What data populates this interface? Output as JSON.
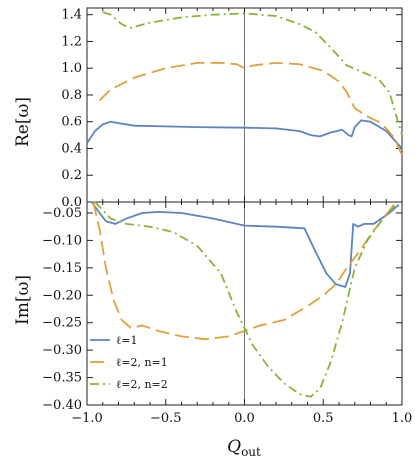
{
  "chart_data": [
    {
      "type": "line",
      "panel": "top",
      "ylabel": "Re[ω]",
      "xlabel": "",
      "xlim": [
        -1.0,
        1.0
      ],
      "ylim": [
        0.0,
        1.45
      ],
      "yticks": [
        "0.0",
        "0.2",
        "0.4",
        "0.6",
        "0.8",
        "1.0",
        "1.2",
        "1.4"
      ],
      "xticks": [
        "-1.0",
        "-0.5",
        "0.0",
        "0.5",
        "1.0"
      ],
      "grid": false,
      "series": [
        {
          "name": "ℓ=1",
          "color": "#5b84c4",
          "dash": "solid",
          "points": [
            [
              -1.0,
              0.44
            ],
            [
              -0.95,
              0.53
            ],
            [
              -0.9,
              0.58
            ],
            [
              -0.85,
              0.6
            ],
            [
              -0.8,
              0.59
            ],
            [
              -0.7,
              0.57
            ],
            [
              -0.5,
              0.565
            ],
            [
              -0.3,
              0.56
            ],
            [
              0.0,
              0.555
            ],
            [
              0.2,
              0.55
            ],
            [
              0.35,
              0.53
            ],
            [
              0.42,
              0.5
            ],
            [
              0.48,
              0.49
            ],
            [
              0.55,
              0.52
            ],
            [
              0.62,
              0.54
            ],
            [
              0.66,
              0.5
            ],
            [
              0.68,
              0.49
            ],
            [
              0.7,
              0.56
            ],
            [
              0.74,
              0.61
            ],
            [
              0.8,
              0.6
            ],
            [
              0.9,
              0.53
            ],
            [
              1.0,
              0.4
            ]
          ]
        },
        {
          "name": "ℓ=2, n=1",
          "color": "#e0a13a",
          "dash": "long",
          "points": [
            [
              -0.92,
              0.76
            ],
            [
              -0.85,
              0.84
            ],
            [
              -0.7,
              0.93
            ],
            [
              -0.5,
              1.0
            ],
            [
              -0.3,
              1.04
            ],
            [
              -0.15,
              1.04
            ],
            [
              -0.05,
              1.03
            ],
            [
              0.0,
              1.0
            ],
            [
              0.05,
              1.02
            ],
            [
              0.2,
              1.04
            ],
            [
              0.35,
              1.03
            ],
            [
              0.5,
              0.98
            ],
            [
              0.6,
              0.9
            ],
            [
              0.65,
              0.82
            ],
            [
              0.7,
              0.7
            ],
            [
              0.78,
              0.64
            ],
            [
              0.85,
              0.6
            ],
            [
              0.9,
              0.55
            ],
            [
              0.95,
              0.48
            ],
            [
              1.0,
              0.35
            ]
          ]
        },
        {
          "name": "ℓ=2, n=2",
          "color": "#8ab33a",
          "dash": "dashdot",
          "points": [
            [
              -0.9,
              1.42
            ],
            [
              -0.85,
              1.4
            ],
            [
              -0.78,
              1.33
            ],
            [
              -0.73,
              1.3
            ],
            [
              -0.6,
              1.34
            ],
            [
              -0.4,
              1.38
            ],
            [
              -0.2,
              1.4
            ],
            [
              0.0,
              1.41
            ],
            [
              0.2,
              1.39
            ],
            [
              0.35,
              1.33
            ],
            [
              0.45,
              1.27
            ],
            [
              0.55,
              1.15
            ],
            [
              0.65,
              1.02
            ],
            [
              0.75,
              0.97
            ],
            [
              0.85,
              0.92
            ],
            [
              0.92,
              0.82
            ],
            [
              1.0,
              0.5
            ]
          ]
        }
      ]
    },
    {
      "type": "line",
      "panel": "bottom",
      "ylabel": "Im[ω]",
      "xlabel": "Q_out",
      "xlim": [
        -1.0,
        1.0
      ],
      "ylim": [
        -0.4,
        -0.03
      ],
      "yticks": [
        "-0.05",
        "-0.10",
        "-0.15",
        "-0.20",
        "-0.25",
        "-0.30",
        "-0.35",
        "-0.40"
      ],
      "xticks": [
        "-1.0",
        "-0.5",
        "0.0",
        "0.5",
        "1.0"
      ],
      "grid": false,
      "legend": "bottom-left",
      "series": [
        {
          "name": "ℓ=1",
          "color": "#5b84c4",
          "dash": "solid",
          "points": [
            [
              -0.97,
              -0.03
            ],
            [
              -0.92,
              -0.05
            ],
            [
              -0.88,
              -0.065
            ],
            [
              -0.82,
              -0.07
            ],
            [
              -0.75,
              -0.06
            ],
            [
              -0.65,
              -0.05
            ],
            [
              -0.55,
              -0.048
            ],
            [
              -0.4,
              -0.05
            ],
            [
              -0.2,
              -0.06
            ],
            [
              0.0,
              -0.073
            ],
            [
              0.2,
              -0.075
            ],
            [
              0.38,
              -0.078
            ],
            [
              0.45,
              -0.12
            ],
            [
              0.52,
              -0.16
            ],
            [
              0.58,
              -0.18
            ],
            [
              0.64,
              -0.185
            ],
            [
              0.67,
              -0.16
            ],
            [
              0.69,
              -0.07
            ],
            [
              0.72,
              -0.075
            ],
            [
              0.76,
              -0.07
            ],
            [
              0.82,
              -0.07
            ],
            [
              0.92,
              -0.05
            ],
            [
              0.98,
              -0.035
            ]
          ]
        },
        {
          "name": "ℓ=2, n=1",
          "color": "#e0a13a",
          "dash": "long",
          "points": [
            [
              -0.96,
              -0.03
            ],
            [
              -0.92,
              -0.08
            ],
            [
              -0.88,
              -0.15
            ],
            [
              -0.83,
              -0.21
            ],
            [
              -0.78,
              -0.245
            ],
            [
              -0.72,
              -0.26
            ],
            [
              -0.65,
              -0.255
            ],
            [
              -0.55,
              -0.265
            ],
            [
              -0.4,
              -0.275
            ],
            [
              -0.25,
              -0.28
            ],
            [
              -0.1,
              -0.275
            ],
            [
              0.0,
              -0.265
            ],
            [
              0.1,
              -0.255
            ],
            [
              0.25,
              -0.245
            ],
            [
              0.4,
              -0.22
            ],
            [
              0.5,
              -0.2
            ],
            [
              0.58,
              -0.18
            ],
            [
              0.65,
              -0.15
            ],
            [
              0.73,
              -0.12
            ],
            [
              0.8,
              -0.09
            ],
            [
              0.88,
              -0.06
            ],
            [
              0.95,
              -0.035
            ]
          ]
        },
        {
          "name": "ℓ=2, n=2",
          "color": "#8ab33a",
          "dash": "dashdot",
          "points": [
            [
              -0.95,
              -0.03
            ],
            [
              -0.9,
              -0.045
            ],
            [
              -0.85,
              -0.06
            ],
            [
              -0.75,
              -0.07
            ],
            [
              -0.6,
              -0.075
            ],
            [
              -0.45,
              -0.085
            ],
            [
              -0.3,
              -0.11
            ],
            [
              -0.15,
              -0.16
            ],
            [
              -0.05,
              -0.23
            ],
            [
              0.05,
              -0.29
            ],
            [
              0.15,
              -0.33
            ],
            [
              0.25,
              -0.36
            ],
            [
              0.35,
              -0.38
            ],
            [
              0.42,
              -0.385
            ],
            [
              0.48,
              -0.37
            ],
            [
              0.55,
              -0.32
            ],
            [
              0.62,
              -0.25
            ],
            [
              0.7,
              -0.15
            ],
            [
              0.78,
              -0.1
            ],
            [
              0.88,
              -0.06
            ],
            [
              0.96,
              -0.035
            ]
          ]
        }
      ]
    }
  ]
}
